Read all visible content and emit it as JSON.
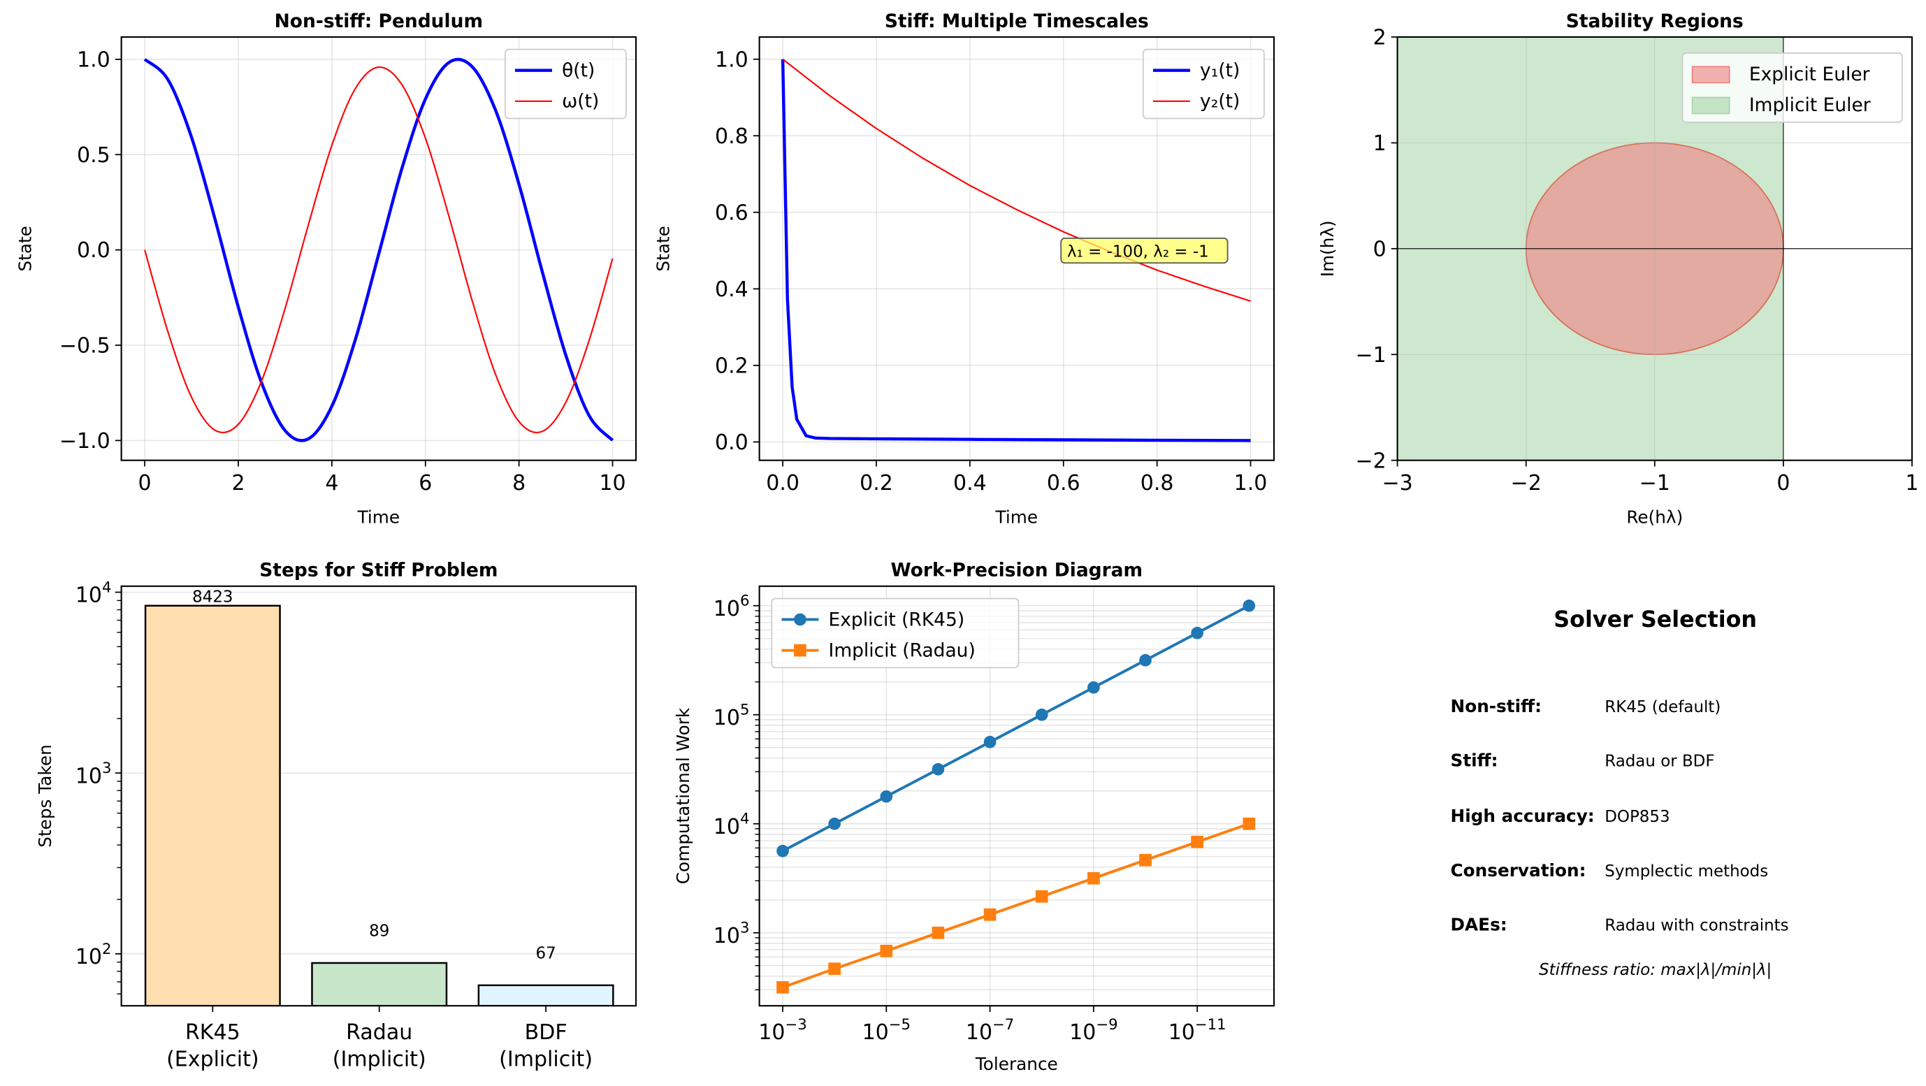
{
  "chart_data": [
    {
      "type": "line",
      "title": "Non-stiff: Pendulum",
      "xlabel": "Time",
      "ylabel": "State",
      "xlim": [
        -0.5,
        10.5
      ],
      "ylim": [
        -1.104,
        1.117
      ],
      "xticks": [
        0,
        2,
        4,
        6,
        8,
        10
      ],
      "xtick_labels": [
        "0",
        "2",
        "4",
        "6",
        "8",
        "10"
      ],
      "yticks": [
        -1,
        -0.5,
        0,
        0.5,
        1
      ],
      "ytick_labels": [
        "−1.0",
        "−0.5",
        "0.0",
        "0.5",
        "1.0"
      ],
      "grid": true,
      "legend": "upper-right",
      "x": [
        0,
        0.5,
        1,
        1.5,
        2,
        2.5,
        3,
        3.5,
        4,
        4.5,
        5,
        5.5,
        6,
        6.5,
        7,
        7.5,
        8,
        8.5,
        9,
        9.5,
        10
      ],
      "series": [
        {
          "name": "θ(t)",
          "color": "#0000ff",
          "width": 2.5,
          "values": [
            1.0,
            0.892,
            0.591,
            0.163,
            -0.3,
            -0.699,
            -0.948,
            -0.991,
            -0.82,
            -0.472,
            -0.023,
            0.43,
            0.792,
            0.983,
            0.961,
            0.732,
            0.344,
            -0.117,
            -0.552,
            -0.87,
            -0.999
          ]
        },
        {
          "name": "ω(t)",
          "color": "#ff0000",
          "width": 1.2,
          "values": [
            0.0,
            -0.433,
            -0.773,
            -0.946,
            -0.915,
            -0.686,
            -0.307,
            0.134,
            0.549,
            0.846,
            0.959,
            0.866,
            0.586,
            0.178,
            -0.267,
            -0.654,
            -0.901,
            -0.952,
            -0.8,
            -0.474,
            -0.045
          ]
        }
      ]
    },
    {
      "type": "line",
      "title": "Stiff: Multiple Timescales",
      "xlabel": "Time",
      "ylabel": "State",
      "xlim": [
        -0.05,
        1.05
      ],
      "ylim": [
        -0.048,
        1.058
      ],
      "xticks": [
        0,
        0.2,
        0.4,
        0.6,
        0.8,
        1.0
      ],
      "xtick_labels": [
        "0.0",
        "0.2",
        "0.4",
        "0.6",
        "0.8",
        "1.0"
      ],
      "yticks": [
        0,
        0.2,
        0.4,
        0.6,
        0.8,
        1.0
      ],
      "ytick_labels": [
        "0.0",
        "0.2",
        "0.4",
        "0.6",
        "0.8",
        "1.0"
      ],
      "grid": true,
      "legend": "upper-right",
      "series": [
        {
          "name": "y₁(t)",
          "color": "#0000ff",
          "width": 2.5,
          "x": [
            0,
            0.01,
            0.02,
            0.03,
            0.05,
            0.07,
            0.1,
            0.2,
            0.4,
            0.6,
            0.8,
            1.0
          ],
          "values": [
            1.0,
            0.374,
            0.144,
            0.059,
            0.016,
            0.0102,
            0.009,
            0.0082,
            0.0067,
            0.0055,
            0.0045,
            0.0037
          ]
        },
        {
          "name": "y₂(t)",
          "color": "#ff0000",
          "width": 1.2,
          "x": [
            0,
            0.1,
            0.2,
            0.3,
            0.4,
            0.5,
            0.6,
            0.7,
            0.8,
            0.9,
            1.0
          ],
          "values": [
            1.0,
            0.905,
            0.819,
            0.741,
            0.67,
            0.607,
            0.549,
            0.497,
            0.449,
            0.407,
            0.368
          ]
        }
      ],
      "annotation": {
        "text": "λ₁ = -100, λ₂ = -1",
        "x": 0.6,
        "y": 0.5,
        "box_color": "#ffff66"
      }
    },
    {
      "type": "area",
      "title": "Stability Regions",
      "xlabel": "Re(hλ)",
      "ylabel": "Im(hλ)",
      "xlim": [
        -3,
        1
      ],
      "ylim": [
        -2,
        2
      ],
      "xticks": [
        -3,
        -2,
        -1,
        0,
        1
      ],
      "xtick_labels": [
        "−3",
        "−2",
        "−1",
        "0",
        "1"
      ],
      "yticks": [
        -2,
        -1,
        0,
        1,
        2
      ],
      "ytick_labels": [
        "−2",
        "−1",
        "0",
        "1",
        "2"
      ],
      "grid": true,
      "legend": "upper-right",
      "regions": [
        {
          "name": "Explicit Euler",
          "shape": "disk",
          "center": [
            -1,
            0
          ],
          "radius": 1,
          "color": "#f08080"
        },
        {
          "name": "Implicit Euler",
          "shape": "half-plane",
          "re_max": 0,
          "color": "#a5d6a7"
        }
      ]
    },
    {
      "type": "bar",
      "title": "Steps for Stiff Problem",
      "xlabel": "",
      "ylabel": "Steps Taken",
      "yscale": "log",
      "ylim": [
        51.6,
        10800
      ],
      "yticks": [
        100,
        1000,
        10000
      ],
      "ytick_exponents": [
        "2",
        "3",
        "4"
      ],
      "categories": [
        "RK45\n(Explicit)",
        "Radau\n(Implicit)",
        "BDF\n(Implicit)"
      ],
      "values": [
        8423,
        89,
        67
      ],
      "value_labels": [
        "8423",
        "89",
        "67"
      ],
      "colors": [
        "#ffdfb0",
        "#c8e6c9",
        "#e1f5fe"
      ],
      "grid": true
    },
    {
      "type": "line",
      "title": "Work-Precision Diagram",
      "xlabel": "Tolerance",
      "ylabel": "Computational Work",
      "xscale": "log",
      "yscale": "log",
      "x_inverted": true,
      "xlim": [
        0.00282,
        3.3e-13
      ],
      "ylim": [
        214,
        1510000
      ],
      "xticks": [
        0.001,
        1e-05,
        1e-07,
        1e-09,
        1e-11
      ],
      "xtick_exponents": [
        "−3",
        "−5",
        "−7",
        "−9",
        "−11"
      ],
      "yticks": [
        1000,
        10000,
        100000,
        1000000
      ],
      "ytick_exponents": [
        "3",
        "4",
        "5",
        "6"
      ],
      "grid": true,
      "legend": "upper-left",
      "x": [
        0.001,
        0.0001,
        1e-05,
        1e-06,
        1e-07,
        1e-08,
        1e-09,
        1e-10,
        1e-11,
        1e-12
      ],
      "series": [
        {
          "name": "Explicit (RK45)",
          "color": "#1f77b4",
          "marker": "circle",
          "values": [
            5623,
            10000,
            17783,
            31623,
            56234,
            100000,
            177828,
            316228,
            562341,
            1000000
          ]
        },
        {
          "name": "Implicit (Radau)",
          "color": "#ff7f0e",
          "marker": "square",
          "values": [
            316,
            468,
            681,
            1000,
            1468,
            2154,
            3162,
            4642,
            6813,
            10000
          ]
        }
      ]
    }
  ],
  "solver_panel": {
    "title": "Solver Selection",
    "rows": [
      {
        "label": "Non-stiff:",
        "value": "RK45 (default)"
      },
      {
        "label": "Stiff:",
        "value": "Radau or BDF"
      },
      {
        "label": "High accuracy:",
        "value": "DOP853"
      },
      {
        "label": "Conservation:",
        "value": "Symplectic methods"
      },
      {
        "label": "DAEs:",
        "value": "Radau with constraints"
      }
    ],
    "footnote": "Stiffness ratio: max|λ|/min|λ|"
  }
}
